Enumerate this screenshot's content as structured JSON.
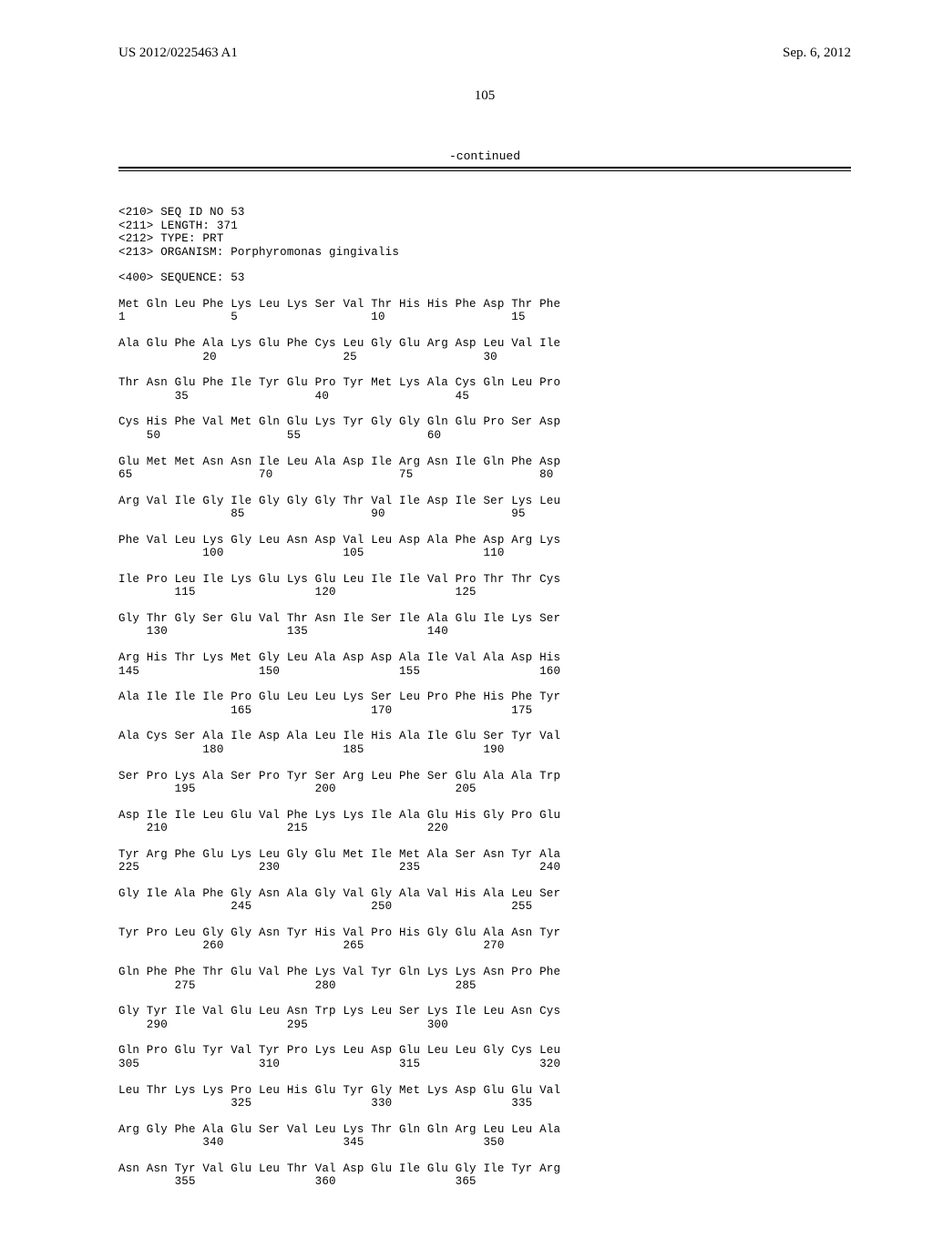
{
  "header": {
    "pub_left": "US 2012/0225463 A1",
    "pub_right": "Sep. 6, 2012",
    "page_number": "105",
    "continued": "-continued"
  },
  "seq_header": {
    "l1": "<210> SEQ ID NO 53",
    "l2": "<211> LENGTH: 371",
    "l3": "<212> TYPE: PRT",
    "l4": "<213> ORGANISM: Porphyromonas gingivalis",
    "l5": "<400> SEQUENCE: 53"
  },
  "rows": [
    {
      "aa": "Met Gln Leu Phe Lys Leu Lys Ser Val Thr His His Phe Asp Thr Phe",
      "num": "1               5                   10                  15"
    },
    {
      "aa": "Ala Glu Phe Ala Lys Glu Phe Cys Leu Gly Glu Arg Asp Leu Val Ile",
      "num": "            20                  25                  30"
    },
    {
      "aa": "Thr Asn Glu Phe Ile Tyr Glu Pro Tyr Met Lys Ala Cys Gln Leu Pro",
      "num": "        35                  40                  45"
    },
    {
      "aa": "Cys His Phe Val Met Gln Glu Lys Tyr Gly Gly Gln Glu Pro Ser Asp",
      "num": "    50                  55                  60"
    },
    {
      "aa": "Glu Met Met Asn Asn Ile Leu Ala Asp Ile Arg Asn Ile Gln Phe Asp",
      "num": "65                  70                  75                  80"
    },
    {
      "aa": "Arg Val Ile Gly Ile Gly Gly Gly Thr Val Ile Asp Ile Ser Lys Leu",
      "num": "                85                  90                  95"
    },
    {
      "aa": "Phe Val Leu Lys Gly Leu Asn Asp Val Leu Asp Ala Phe Asp Arg Lys",
      "num": "            100                 105                 110"
    },
    {
      "aa": "Ile Pro Leu Ile Lys Glu Lys Glu Leu Ile Ile Val Pro Thr Thr Cys",
      "num": "        115                 120                 125"
    },
    {
      "aa": "Gly Thr Gly Ser Glu Val Thr Asn Ile Ser Ile Ala Glu Ile Lys Ser",
      "num": "    130                 135                 140"
    },
    {
      "aa": "Arg His Thr Lys Met Gly Leu Ala Asp Asp Ala Ile Val Ala Asp His",
      "num": "145                 150                 155                 160"
    },
    {
      "aa": "Ala Ile Ile Ile Pro Glu Leu Leu Lys Ser Leu Pro Phe His Phe Tyr",
      "num": "                165                 170                 175"
    },
    {
      "aa": "Ala Cys Ser Ala Ile Asp Ala Leu Ile His Ala Ile Glu Ser Tyr Val",
      "num": "            180                 185                 190"
    },
    {
      "aa": "Ser Pro Lys Ala Ser Pro Tyr Ser Arg Leu Phe Ser Glu Ala Ala Trp",
      "num": "        195                 200                 205"
    },
    {
      "aa": "Asp Ile Ile Leu Glu Val Phe Lys Lys Ile Ala Glu His Gly Pro Glu",
      "num": "    210                 215                 220"
    },
    {
      "aa": "Tyr Arg Phe Glu Lys Leu Gly Glu Met Ile Met Ala Ser Asn Tyr Ala",
      "num": "225                 230                 235                 240"
    },
    {
      "aa": "Gly Ile Ala Phe Gly Asn Ala Gly Val Gly Ala Val His Ala Leu Ser",
      "num": "                245                 250                 255"
    },
    {
      "aa": "Tyr Pro Leu Gly Gly Asn Tyr His Val Pro His Gly Glu Ala Asn Tyr",
      "num": "            260                 265                 270"
    },
    {
      "aa": "Gln Phe Phe Thr Glu Val Phe Lys Val Tyr Gln Lys Lys Asn Pro Phe",
      "num": "        275                 280                 285"
    },
    {
      "aa": "Gly Tyr Ile Val Glu Leu Asn Trp Lys Leu Ser Lys Ile Leu Asn Cys",
      "num": "    290                 295                 300"
    },
    {
      "aa": "Gln Pro Glu Tyr Val Tyr Pro Lys Leu Asp Glu Leu Leu Gly Cys Leu",
      "num": "305                 310                 315                 320"
    },
    {
      "aa": "Leu Thr Lys Lys Pro Leu His Glu Tyr Gly Met Lys Asp Glu Glu Val",
      "num": "                325                 330                 335"
    },
    {
      "aa": "Arg Gly Phe Ala Glu Ser Val Leu Lys Thr Gln Gln Arg Leu Leu Ala",
      "num": "            340                 345                 350"
    },
    {
      "aa": "Asn Asn Tyr Val Glu Leu Thr Val Asp Glu Ile Glu Gly Ile Tyr Arg",
      "num": "        355                 360                 365"
    }
  ]
}
